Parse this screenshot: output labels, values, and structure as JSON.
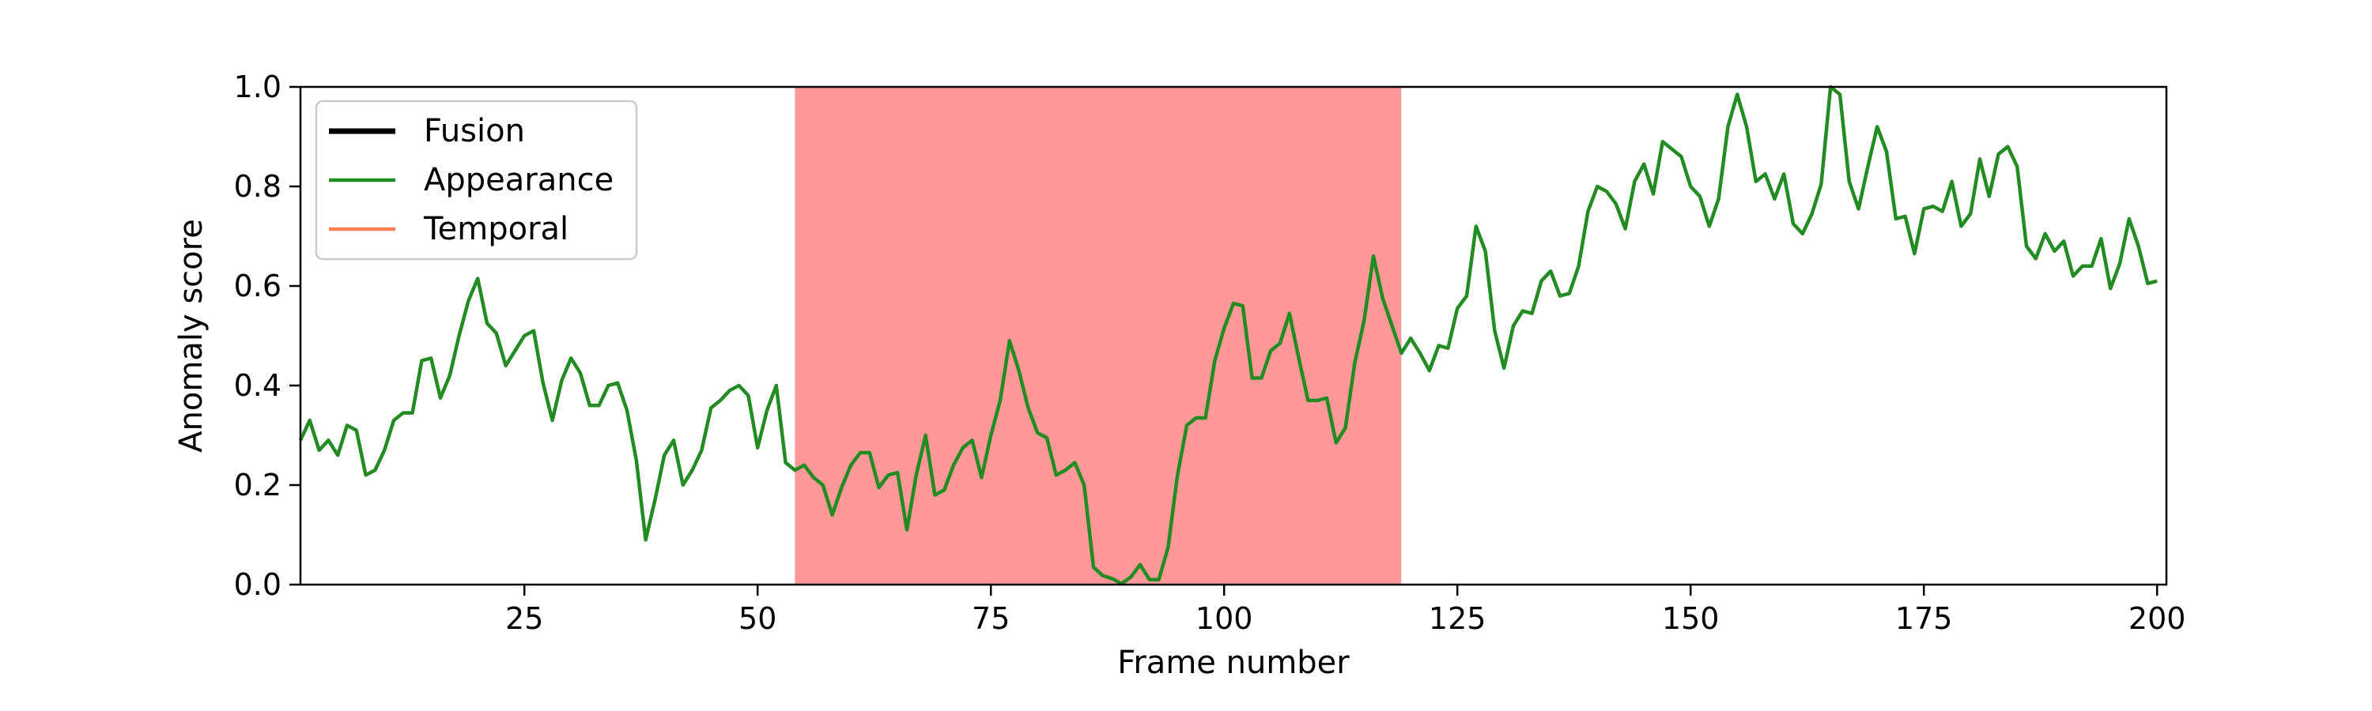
{
  "chart_data": {
    "type": "line",
    "title": "",
    "xlabel": "Frame number",
    "ylabel": "Anomaly score",
    "xlim": [
      1,
      201
    ],
    "ylim": [
      0,
      1
    ],
    "xticks": [
      25,
      50,
      75,
      100,
      125,
      150,
      175,
      200
    ],
    "yticks": [
      0.0,
      0.2,
      0.4,
      0.6,
      0.8,
      1.0
    ],
    "ytick_labels": [
      "0.0",
      "0.2",
      "0.4",
      "0.6",
      "0.8",
      "1.0"
    ],
    "grid": false,
    "legend_position": "top-left",
    "highlight_region": {
      "x_start": 54,
      "x_end": 119,
      "color": "#ff9999"
    },
    "series": [
      {
        "name": "Fusion",
        "color": "#000000",
        "values": []
      },
      {
        "name": "Appearance",
        "color": "#228b22",
        "values": [
          0.29,
          0.33,
          0.27,
          0.29,
          0.26,
          0.32,
          0.31,
          0.22,
          0.23,
          0.27,
          0.33,
          0.345,
          0.345,
          0.45,
          0.455,
          0.375,
          0.42,
          0.5,
          0.57,
          0.615,
          0.525,
          0.505,
          0.44,
          0.47,
          0.5,
          0.51,
          0.405,
          0.33,
          0.41,
          0.455,
          0.425,
          0.36,
          0.36,
          0.4,
          0.405,
          0.35,
          0.25,
          0.09,
          0.17,
          0.26,
          0.29,
          0.2,
          0.23,
          0.27,
          0.355,
          0.37,
          0.39,
          0.4,
          0.38,
          0.275,
          0.35,
          0.4,
          0.245,
          0.23,
          0.24,
          0.215,
          0.2,
          0.14,
          0.195,
          0.24,
          0.265,
          0.265,
          0.195,
          0.22,
          0.225,
          0.11,
          0.22,
          0.3,
          0.18,
          0.19,
          0.24,
          0.275,
          0.29,
          0.215,
          0.3,
          0.37,
          0.49,
          0.43,
          0.355,
          0.305,
          0.295,
          0.22,
          0.23,
          0.245,
          0.2,
          0.035,
          0.018,
          0.012,
          0.002,
          0.015,
          0.04,
          0.01,
          0.01,
          0.075,
          0.22,
          0.32,
          0.335,
          0.335,
          0.45,
          0.515,
          0.565,
          0.56,
          0.415,
          0.415,
          0.47,
          0.485,
          0.545,
          0.455,
          0.37,
          0.37,
          0.375,
          0.285,
          0.315,
          0.445,
          0.53,
          0.66,
          0.575,
          0.52,
          0.465,
          0.495,
          0.465,
          0.43,
          0.48,
          0.475,
          0.555,
          0.58,
          0.72,
          0.67,
          0.51,
          0.435,
          0.52,
          0.55,
          0.545,
          0.61,
          0.63,
          0.58,
          0.585,
          0.64,
          0.75,
          0.8,
          0.79,
          0.765,
          0.715,
          0.81,
          0.845,
          0.785,
          0.89,
          0.875,
          0.86,
          0.8,
          0.78,
          0.72,
          0.775,
          0.92,
          0.985,
          0.92,
          0.81,
          0.825,
          0.775,
          0.825,
          0.725,
          0.705,
          0.745,
          0.805,
          1.0,
          0.985,
          0.81,
          0.755,
          0.84,
          0.92,
          0.87,
          0.735,
          0.74,
          0.665,
          0.755,
          0.76,
          0.75,
          0.81,
          0.72,
          0.745,
          0.855,
          0.78,
          0.865,
          0.88,
          0.84,
          0.68,
          0.655,
          0.705,
          0.67,
          0.69,
          0.62,
          0.64,
          0.64,
          0.695,
          0.595,
          0.645,
          0.735,
          0.68,
          0.605,
          0.61
        ]
      },
      {
        "name": "Temporal",
        "color": "#ff7f50",
        "values": []
      }
    ]
  }
}
